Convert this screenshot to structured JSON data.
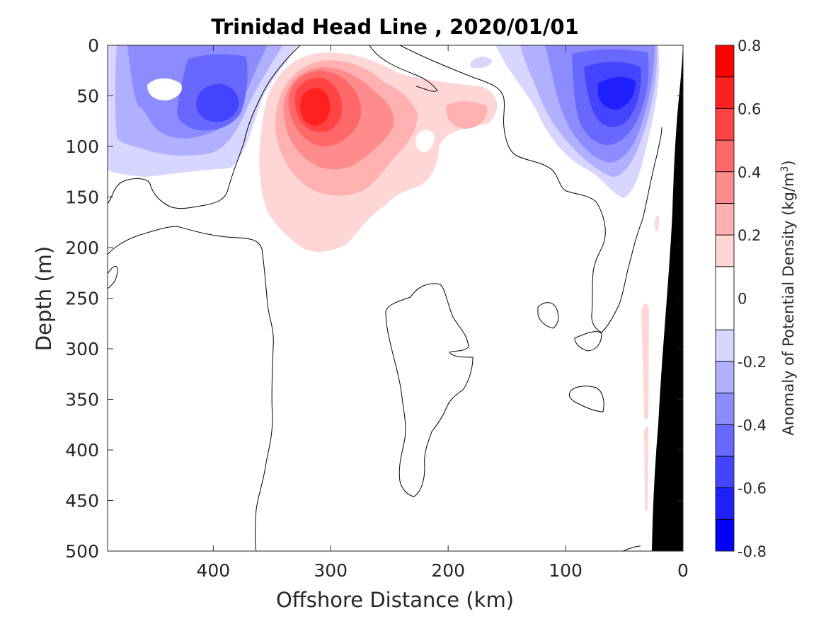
{
  "chart_data": {
    "type": "heatmap",
    "title": "Trinidad Head Line , 2020/01/01",
    "xlabel": "Offshore Distance (km)",
    "ylabel": "Depth (m)",
    "xlim": [
      490,
      0
    ],
    "ylim": [
      0,
      500
    ],
    "x_reversed": true,
    "y_reversed": true,
    "x_ticks": [
      400,
      300,
      200,
      100,
      0
    ],
    "y_ticks": [
      0,
      50,
      100,
      150,
      200,
      250,
      300,
      350,
      400,
      450,
      500
    ],
    "colorbar": {
      "label_main": "Anomaly of Potential Density (kg/m",
      "label_sup": "3",
      "label_close": ")",
      "range": [
        -0.8,
        0.8
      ],
      "levels": [
        -0.8,
        -0.7,
        -0.6,
        -0.5,
        -0.4,
        -0.3,
        -0.2,
        -0.1,
        0.1,
        0.2,
        0.3,
        0.4,
        0.5,
        0.6,
        0.7,
        0.8
      ],
      "ticks": [
        0.8,
        0.6,
        0.4,
        0.2,
        0,
        -0.2,
        -0.4,
        -0.6,
        -0.8
      ],
      "tick_labels": [
        "0.8",
        "0.6",
        "0.4",
        "0.2",
        "0",
        "-0.2",
        "-0.4",
        "-0.6",
        "-0.8"
      ],
      "colors": [
        "#0000ff",
        "#2020ff",
        "#4444ff",
        "#6868ff",
        "#8c8cff",
        "#b0b0ff",
        "#d6d6ff",
        "#ffffff",
        "#ffd6d6",
        "#ffb0b0",
        "#ff8c8c",
        "#ff6868",
        "#ff4444",
        "#ff2020",
        "#ff0000"
      ]
    },
    "anomaly_features": [
      {
        "name": "warm-core",
        "sign": "positive",
        "x_km": 315,
        "depth_m": 65,
        "peak": 0.75
      },
      {
        "name": "nearshore-cold-core",
        "sign": "negative",
        "x_km": 55,
        "depth_m": 45,
        "peak": -0.65
      },
      {
        "name": "offshore-cold-patch",
        "sign": "negative",
        "x_km": 400,
        "depth_m": 70,
        "peak": -0.4
      }
    ],
    "bathymetry_color": "#000000",
    "contour_level": 0,
    "grid": false
  }
}
